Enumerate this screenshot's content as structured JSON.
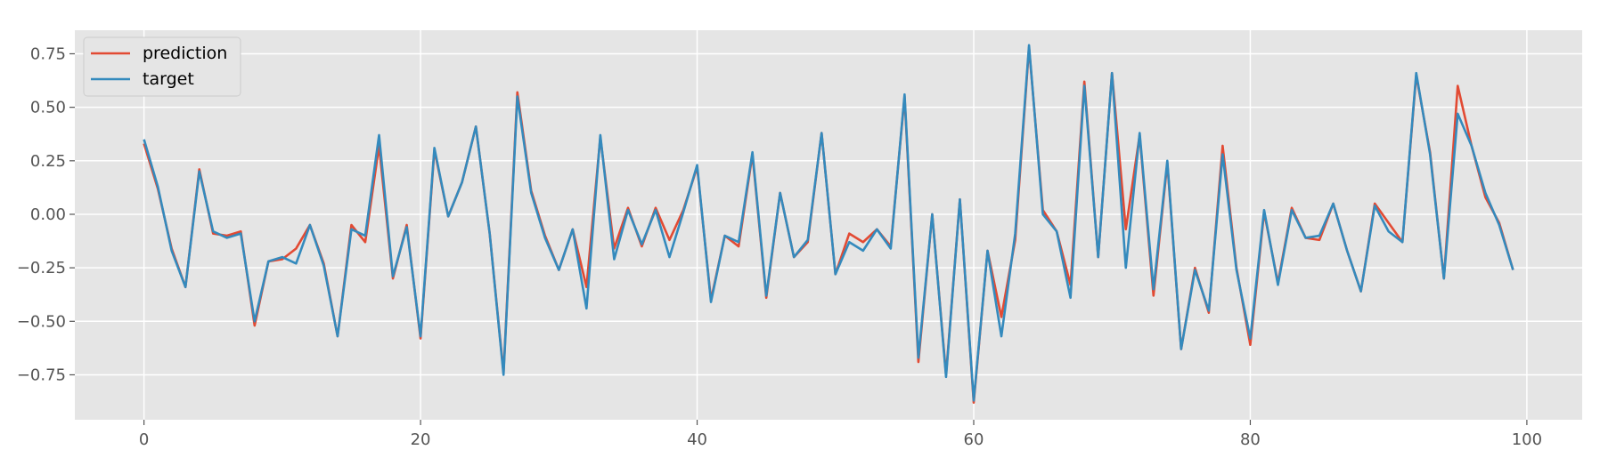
{
  "chart_data": {
    "type": "line",
    "title": "",
    "xlabel": "",
    "ylabel": "",
    "xlim": [
      -5,
      104
    ],
    "ylim": [
      -0.96,
      0.86
    ],
    "grid": true,
    "legend_position": "top-left",
    "xticks": [
      0,
      20,
      40,
      60,
      80,
      100
    ],
    "xtick_labels": [
      "0",
      "20",
      "40",
      "60",
      "80",
      "100"
    ],
    "yticks": [
      0.75,
      0.5,
      0.25,
      0.0,
      -0.25,
      -0.5,
      -0.75
    ],
    "ytick_labels": [
      "0.75",
      "0.50",
      "0.25",
      "0.00",
      "−0.25",
      "−0.50",
      "−0.75"
    ],
    "series": [
      {
        "name": "prediction",
        "color": "#E24A33",
        "values": [
          0.33,
          0.12,
          -0.16,
          -0.34,
          0.21,
          -0.09,
          -0.1,
          -0.08,
          -0.52,
          -0.22,
          -0.21,
          -0.16,
          -0.05,
          -0.23,
          -0.57,
          -0.05,
          -0.13,
          0.32,
          -0.3,
          -0.05,
          -0.58,
          0.3,
          -0.01,
          0.15,
          0.41,
          -0.09,
          -0.74,
          0.57,
          0.11,
          -0.1,
          -0.26,
          -0.07,
          -0.34,
          0.36,
          -0.16,
          0.03,
          -0.15,
          0.03,
          -0.12,
          0.02,
          0.22,
          -0.4,
          -0.1,
          -0.15,
          0.28,
          -0.39,
          0.1,
          -0.2,
          -0.13,
          0.38,
          -0.28,
          -0.09,
          -0.13,
          -0.07,
          -0.15,
          0.55,
          -0.69,
          0.0,
          -0.75,
          0.07,
          -0.88,
          -0.17,
          -0.48,
          -0.12,
          0.78,
          0.02,
          -0.08,
          -0.33,
          0.62,
          -0.2,
          0.66,
          -0.07,
          0.37,
          -0.38,
          0.24,
          -0.63,
          -0.25,
          -0.46,
          0.32,
          -0.25,
          -0.61,
          0.01,
          -0.32,
          0.03,
          -0.11,
          -0.12,
          0.05,
          -0.17,
          -0.36,
          0.05,
          -0.04,
          -0.13,
          0.65,
          0.29,
          -0.3,
          0.6,
          0.32,
          0.08,
          -0.04,
          -0.26
        ]
      },
      {
        "name": "target",
        "color": "#348ABD",
        "values": [
          0.35,
          0.13,
          -0.17,
          -0.34,
          0.2,
          -0.08,
          -0.11,
          -0.09,
          -0.5,
          -0.22,
          -0.2,
          -0.23,
          -0.05,
          -0.24,
          -0.57,
          -0.07,
          -0.1,
          0.37,
          -0.29,
          -0.06,
          -0.57,
          0.31,
          -0.01,
          0.15,
          0.41,
          -0.09,
          -0.75,
          0.55,
          0.1,
          -0.11,
          -0.26,
          -0.07,
          -0.44,
          0.37,
          -0.21,
          0.02,
          -0.14,
          0.02,
          -0.2,
          0.01,
          0.23,
          -0.41,
          -0.1,
          -0.13,
          0.29,
          -0.38,
          0.1,
          -0.2,
          -0.12,
          0.38,
          -0.28,
          -0.13,
          -0.17,
          -0.07,
          -0.16,
          0.56,
          -0.67,
          0.0,
          -0.76,
          0.07,
          -0.87,
          -0.17,
          -0.57,
          -0.09,
          0.79,
          0.0,
          -0.08,
          -0.39,
          0.6,
          -0.2,
          0.66,
          -0.25,
          0.38,
          -0.35,
          0.25,
          -0.63,
          -0.26,
          -0.45,
          0.28,
          -0.26,
          -0.58,
          0.02,
          -0.33,
          0.02,
          -0.11,
          -0.1,
          0.05,
          -0.17,
          -0.36,
          0.04,
          -0.08,
          -0.13,
          0.66,
          0.28,
          -0.3,
          0.47,
          0.32,
          0.1,
          -0.05,
          -0.26
        ]
      }
    ]
  }
}
